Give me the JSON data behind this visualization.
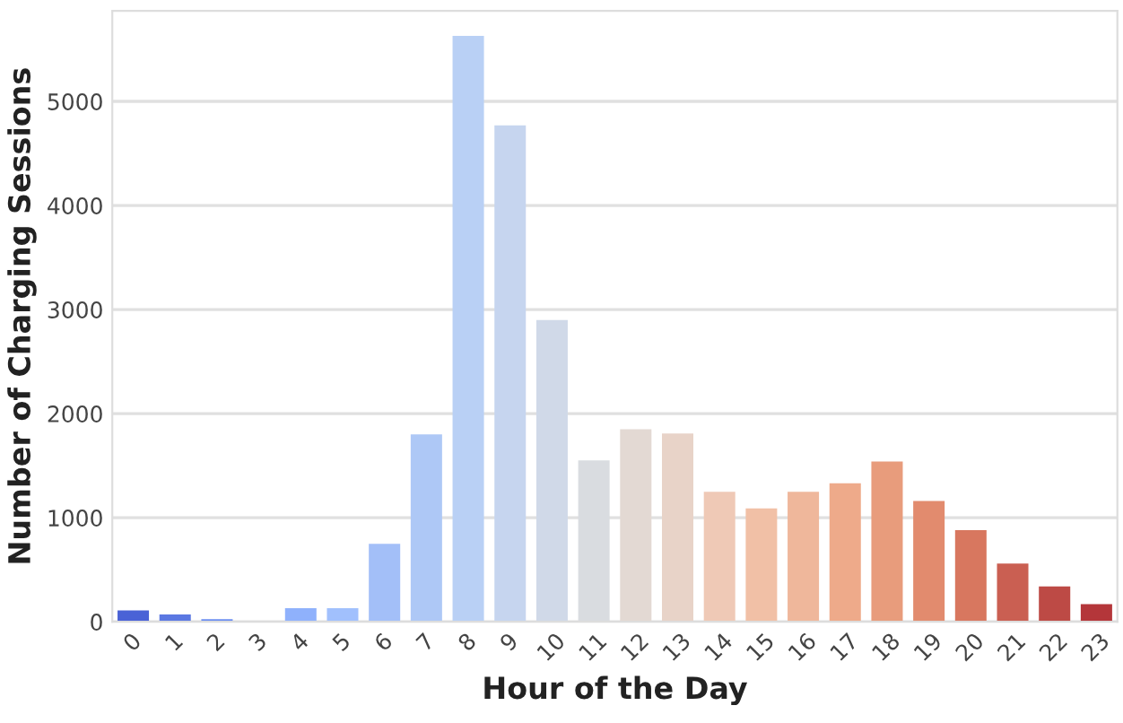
{
  "chart_data": {
    "type": "bar",
    "xlabel": "Hour of the Day",
    "ylabel": "Number of Charging Sessions",
    "categories": [
      "0",
      "1",
      "2",
      "3",
      "4",
      "5",
      "6",
      "7",
      "8",
      "9",
      "10",
      "11",
      "12",
      "13",
      "14",
      "15",
      "16",
      "17",
      "18",
      "19",
      "20",
      "21",
      "22",
      "23"
    ],
    "values": [
      110,
      70,
      25,
      5,
      130,
      130,
      750,
      1800,
      5630,
      4770,
      2900,
      1550,
      1850,
      1810,
      1250,
      1090,
      1250,
      1330,
      1540,
      1160,
      880,
      560,
      340,
      170
    ],
    "colors": [
      "#4a62d6",
      "#5b78e2",
      "#6c8ef0",
      "#7da0f8",
      "#8fb1fc",
      "#a1c0fd",
      "#a3bff8",
      "#aec8f6",
      "#b9d0f5",
      "#c6d5ef",
      "#d0d9e8",
      "#d9dce0",
      "#e3d9d3",
      "#e8d3c8",
      "#efc9b6",
      "#f1c0a6",
      "#efb79b",
      "#eeaa8a",
      "#e89c7c",
      "#e28b6e",
      "#d8775f",
      "#ca5f52",
      "#bd4a45",
      "#b4363a"
    ],
    "ylim": [
      0,
      5870
    ],
    "yticks": [
      0,
      1000,
      2000,
      3000,
      4000,
      5000
    ],
    "grid": "y"
  }
}
